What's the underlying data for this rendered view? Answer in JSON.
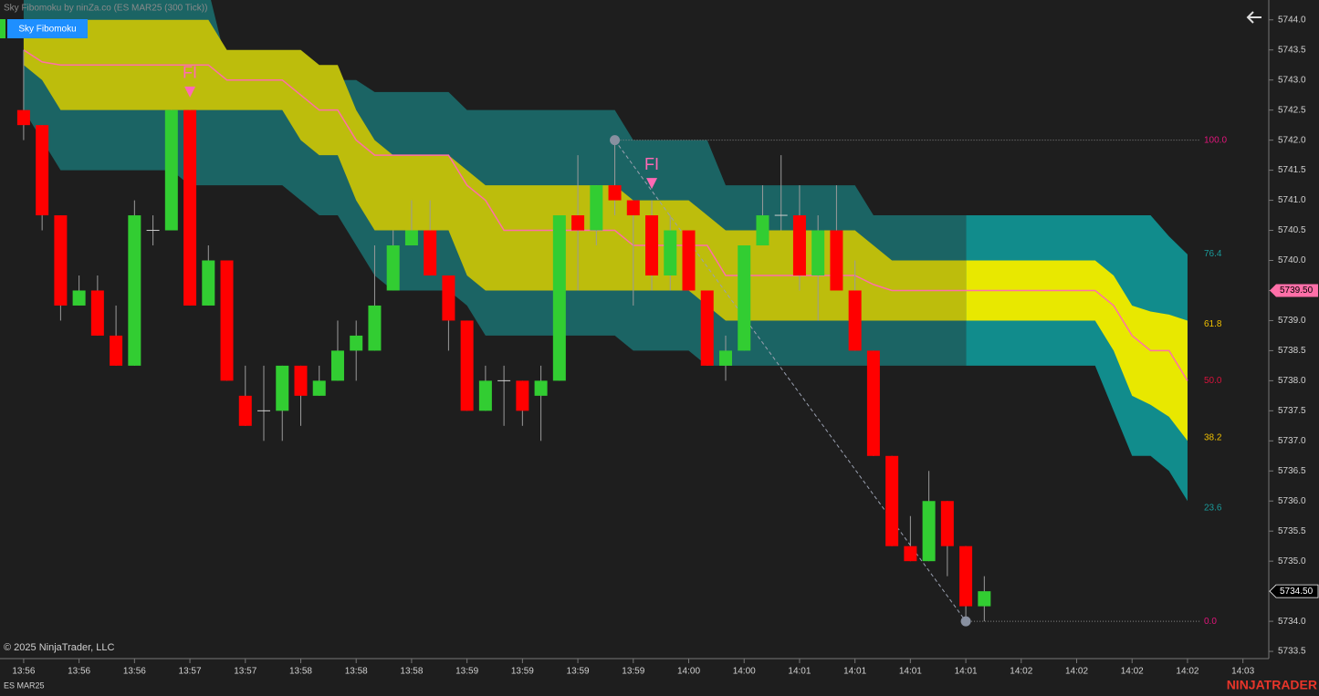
{
  "header": {
    "title": "Sky Fibomoku by ninZa.co (ES MAR25 (300 Tick))",
    "button": "Sky Fibomoku"
  },
  "footer": {
    "copyright": "© 2025 NinjaTrader, LLC",
    "instrument": "ES MAR25",
    "logo": "NINJATRADER"
  },
  "chart_data": {
    "type": "candlestick",
    "xlim": [
      -1.28,
      67.4
    ],
    "ylim": [
      5733.38,
      5744.33
    ],
    "yticks": [
      {
        "value": 5733.5,
        "label": "5733.5"
      },
      {
        "value": 5734,
        "label": "5734.0"
      },
      5734.5,
      {
        "value": 5735,
        "label": "5735.0"
      },
      5735.5,
      {
        "value": 5736,
        "label": "5736.0"
      },
      5736.5,
      {
        "value": 5737,
        "label": "5737.0"
      },
      5737.5,
      {
        "value": 5738,
        "label": "5738.0"
      },
      5738.5,
      {
        "value": 5739,
        "label": "5739.0"
      },
      5739.5,
      {
        "value": 5740,
        "label": "5740.0"
      },
      5740.5,
      {
        "value": 5741,
        "label": "5741.0"
      },
      5741.5,
      {
        "value": 5742,
        "label": "5742.0"
      },
      5742.5,
      {
        "value": 5743,
        "label": "5743.0"
      },
      5743.5,
      {
        "value": 5744,
        "label": "5744.0"
      }
    ],
    "xticks": [
      {
        "value": 0,
        "label": "13:56"
      },
      {
        "value": 3,
        "label": "13:56"
      },
      {
        "value": 6,
        "label": "13:56"
      },
      {
        "value": 9,
        "label": "13:57"
      },
      {
        "value": 12,
        "label": "13:57"
      },
      {
        "value": 15,
        "label": "13:58"
      },
      {
        "value": 18,
        "label": "13:58"
      },
      {
        "value": 21,
        "label": "13:58"
      },
      {
        "value": 24,
        "label": "13:59"
      },
      {
        "value": 27,
        "label": "13:59"
      },
      {
        "value": 30,
        "label": "13:59"
      },
      {
        "value": 33,
        "label": "13:59"
      },
      {
        "value": 36,
        "label": "14:00"
      },
      {
        "value": 39,
        "label": "14:00"
      },
      {
        "value": 42,
        "label": "14:01"
      },
      {
        "value": 45,
        "label": "14:01"
      },
      {
        "value": 48,
        "label": "14:01"
      },
      {
        "value": 51,
        "label": "14:01"
      },
      {
        "value": 54,
        "label": "14:02"
      },
      {
        "value": 57,
        "label": "14:02"
      },
      {
        "value": 60,
        "label": "14:02"
      },
      {
        "value": 63,
        "label": "14:02"
      },
      {
        "value": 66,
        "label": "14:03"
      }
    ],
    "up_color": "#32cd32",
    "down_color": "#ff0000",
    "wick_color": "#9a9a9a",
    "open": [
      5742.5,
      5742.25,
      5740.75,
      5739.25,
      5739.5,
      5738.75,
      5738.25,
      5740.5,
      5740.5,
      5742.5,
      5739.25,
      5740.0,
      5737.75,
      5737.5,
      5737.5,
      5738.25,
      5737.75,
      5738.0,
      5738.5,
      5738.5,
      5739.5,
      5740.25,
      5740.5,
      5739.75,
      5739.0,
      5737.5,
      5738.0,
      5738.0,
      5737.75,
      5738.0,
      5740.75,
      5740.5,
      5741.25,
      5741.0,
      5740.75,
      5739.75,
      5740.5,
      5739.5,
      5738.25,
      5738.5,
      5740.25,
      5740.75,
      5740.75,
      5739.75,
      5740.5,
      5739.5,
      5738.5,
      5736.75,
      5735.25,
      5735.0,
      5736.0,
      5735.25,
      5734.25
    ],
    "high": [
      5743.5,
      5742.25,
      5740.75,
      5739.75,
      5739.75,
      5739.25,
      5741.0,
      5740.75,
      5742.5,
      5742.5,
      5740.25,
      5740.0,
      5738.25,
      5738.25,
      5738.25,
      5738.25,
      5738.25,
      5739.0,
      5739.0,
      5740.25,
      5740.5,
      5741.0,
      5741.0,
      5739.75,
      5739.0,
      5738.25,
      5738.25,
      5738.0,
      5738.25,
      5740.75,
      5741.75,
      5741.25,
      5742.0,
      5741.0,
      5741.0,
      5740.75,
      5740.5,
      5739.5,
      5738.75,
      5740.25,
      5741.25,
      5741.75,
      5741.25,
      5740.75,
      5741.25,
      5740.0,
      5738.5,
      5736.75,
      5735.75,
      5736.5,
      5736.0,
      5735.25,
      5734.75
    ],
    "low": [
      5742.0,
      5740.5,
      5739.0,
      5739.25,
      5738.75,
      5738.25,
      5738.25,
      5740.25,
      5740.5,
      5739.25,
      5739.25,
      5738.0,
      5737.25,
      5737.0,
      5737.0,
      5737.25,
      5737.75,
      5738.0,
      5738.0,
      5738.5,
      5739.5,
      5740.25,
      5739.75,
      5738.5,
      5737.5,
      5737.5,
      5737.25,
      5737.25,
      5737.0,
      5738.0,
      5739.5,
      5740.25,
      5740.75,
      5739.25,
      5739.5,
      5739.5,
      5739.5,
      5738.25,
      5738.0,
      5738.5,
      5740.25,
      5740.5,
      5739.5,
      5739.0,
      5739.5,
      5738.5,
      5736.75,
      5735.25,
      5735.0,
      5735.0,
      5734.75,
      5734.0,
      5734.0
    ],
    "close": [
      5742.25,
      5740.75,
      5739.25,
      5739.5,
      5738.75,
      5738.25,
      5740.75,
      5740.5,
      5742.5,
      5739.25,
      5740.0,
      5738.0,
      5737.25,
      5737.5,
      5738.25,
      5737.75,
      5738.0,
      5738.5,
      5738.75,
      5739.25,
      5740.25,
      5740.5,
      5739.75,
      5739.0,
      5737.5,
      5738.0,
      5738.0,
      5737.5,
      5738.0,
      5740.75,
      5740.5,
      5741.25,
      5741.0,
      5740.75,
      5739.75,
      5740.5,
      5739.5,
      5738.25,
      5738.5,
      5740.25,
      5740.75,
      5740.75,
      5739.75,
      5740.5,
      5739.5,
      5738.5,
      5736.75,
      5735.25,
      5735.0,
      5736.0,
      5735.25,
      5734.25,
      5734.5
    ],
    "cloud": {
      "outer_color": "#1b6464",
      "inner_color": "#bdbd0c",
      "outer_future_color": "#118c8c",
      "inner_future_color": "#e8e800",
      "mid_color": "#ff6fa8",
      "outer_upper": [
        5744.5,
        5744.5,
        5744.5,
        5744.5,
        5744.5,
        5744.5,
        5744.5,
        5744.5,
        5744.5,
        5744.5,
        5744.5,
        5743.25,
        5743.25,
        5743.25,
        5743.25,
        5743.25,
        5743.0,
        5743.0,
        5743.0,
        5742.8,
        5742.8,
        5742.8,
        5742.8,
        5742.8,
        5742.5,
        5742.5,
        5742.5,
        5742.5,
        5742.5,
        5742.5,
        5742.5,
        5742.5,
        5742.5,
        5742.0,
        5742.0,
        5742.0,
        5742.0,
        5742.0,
        5741.25,
        5741.25,
        5741.25,
        5741.25,
        5741.25,
        5741.25,
        5741.25,
        5741.25,
        5740.75,
        5740.75,
        5740.75,
        5740.75,
        5740.75,
        5740.75,
        5740.75,
        5740.75,
        5740.75,
        5740.75,
        5740.75,
        5740.75,
        5740.75,
        5740.75,
        5740.75,
        5740.75,
        5740.4,
        5740.1
      ],
      "inner_upper": [
        5744.0,
        5744.0,
        5744.0,
        5744.0,
        5744.0,
        5744.0,
        5744.0,
        5744.0,
        5744.0,
        5744.0,
        5744.0,
        5743.5,
        5743.5,
        5743.5,
        5743.5,
        5743.5,
        5743.25,
        5743.25,
        5742.5,
        5742.0,
        5741.75,
        5741.75,
        5741.75,
        5741.75,
        5741.5,
        5741.25,
        5741.25,
        5741.25,
        5741.25,
        5741.25,
        5741.25,
        5741.25,
        5741.25,
        5741.0,
        5741.0,
        5741.0,
        5741.0,
        5740.75,
        5740.5,
        5740.5,
        5740.5,
        5740.5,
        5740.5,
        5740.5,
        5740.5,
        5740.5,
        5740.25,
        5740.0,
        5740.0,
        5740.0,
        5740.0,
        5740.0,
        5740.0,
        5740.0,
        5740.0,
        5740.0,
        5740.0,
        5740.0,
        5740.0,
        5739.75,
        5739.25,
        5739.15,
        5739.1,
        5739.0
      ],
      "mid": [
        5743.5,
        5743.3,
        5743.25,
        5743.25,
        5743.25,
        5743.25,
        5743.25,
        5743.25,
        5743.25,
        5743.25,
        5743.25,
        5743.0,
        5743.0,
        5743.0,
        5743.0,
        5742.75,
        5742.5,
        5742.5,
        5742.0,
        5741.75,
        5741.75,
        5741.75,
        5741.75,
        5741.75,
        5741.25,
        5741.0,
        5740.5,
        5740.5,
        5740.5,
        5740.5,
        5740.5,
        5740.5,
        5740.5,
        5740.25,
        5740.25,
        5740.25,
        5740.25,
        5740.25,
        5739.75,
        5739.75,
        5739.75,
        5739.75,
        5739.75,
        5739.75,
        5739.75,
        5739.75,
        5739.6,
        5739.5,
        5739.5,
        5739.5,
        5739.5,
        5739.5,
        5739.5,
        5739.5,
        5739.5,
        5739.5,
        5739.5,
        5739.5,
        5739.5,
        5739.25,
        5738.75,
        5738.5,
        5738.5,
        5738.0
      ],
      "inner_lower": [
        5743.25,
        5743.0,
        5742.5,
        5742.5,
        5742.5,
        5742.5,
        5742.5,
        5742.5,
        5742.5,
        5742.5,
        5742.5,
        5742.5,
        5742.5,
        5742.5,
        5742.5,
        5742.0,
        5741.75,
        5741.75,
        5741.0,
        5740.5,
        5740.5,
        5740.5,
        5740.5,
        5740.5,
        5739.75,
        5739.5,
        5739.5,
        5739.5,
        5739.5,
        5739.5,
        5739.5,
        5739.5,
        5739.5,
        5739.5,
        5739.5,
        5739.5,
        5739.5,
        5739.25,
        5739.0,
        5739.0,
        5739.0,
        5739.0,
        5739.0,
        5739.0,
        5739.0,
        5739.0,
        5739.0,
        5739.0,
        5739.0,
        5739.0,
        5739.0,
        5739.0,
        5739.0,
        5739.0,
        5739.0,
        5739.0,
        5739.0,
        5739.0,
        5739.0,
        5738.5,
        5737.75,
        5737.6,
        5737.4,
        5737.0
      ],
      "outer_lower": [
        5742.5,
        5742.0,
        5741.5,
        5741.5,
        5741.5,
        5741.5,
        5741.5,
        5741.5,
        5741.5,
        5741.25,
        5741.25,
        5741.25,
        5741.25,
        5741.25,
        5741.25,
        5741.0,
        5740.75,
        5740.75,
        5740.25,
        5739.75,
        5739.5,
        5739.5,
        5739.5,
        5739.5,
        5739.25,
        5738.75,
        5738.75,
        5738.75,
        5738.75,
        5738.75,
        5738.75,
        5738.75,
        5738.75,
        5738.5,
        5738.5,
        5738.5,
        5738.5,
        5738.25,
        5738.25,
        5738.25,
        5738.25,
        5738.25,
        5738.25,
        5738.25,
        5738.25,
        5738.25,
        5738.25,
        5738.25,
        5738.25,
        5738.25,
        5738.25,
        5738.25,
        5738.25,
        5738.25,
        5738.25,
        5738.25,
        5738.25,
        5738.25,
        5738.25,
        5737.5,
        5736.75,
        5736.75,
        5736.5,
        5736.0
      ]
    },
    "fib": {
      "start": {
        "x": 32,
        "y": 5742.0
      },
      "end": {
        "x": 51,
        "y": 5734.0
      },
      "levels": [
        {
          "value": 100,
          "label": "100.0",
          "color": "#e0157a"
        },
        {
          "value": 76.4,
          "label": "76.4",
          "color": "#1a9a9a"
        },
        {
          "value": 61.8,
          "label": "61.8",
          "color": "#f0c000"
        },
        {
          "value": 50,
          "label": "50.0",
          "color": "#d8123c"
        },
        {
          "value": 38.2,
          "label": "38.2",
          "color": "#f0c000"
        },
        {
          "value": 23.6,
          "label": "23.6",
          "color": "#1a9a9a"
        },
        {
          "value": 0,
          "label": "0.0",
          "color": "#e0157a"
        }
      ]
    },
    "annotations": [
      {
        "x": 9,
        "y": 5742.8,
        "text": "FI"
      },
      {
        "x": 34,
        "y": 5741.28,
        "text": "FI"
      }
    ],
    "price_tags": [
      {
        "value": 5739.5,
        "label": "5739.50",
        "color": "#ff6fa8",
        "text_color": "#000000"
      },
      {
        "value": 5734.5,
        "label": "5734.50",
        "color": "#000000",
        "text_color": "#ffffff"
      }
    ]
  }
}
